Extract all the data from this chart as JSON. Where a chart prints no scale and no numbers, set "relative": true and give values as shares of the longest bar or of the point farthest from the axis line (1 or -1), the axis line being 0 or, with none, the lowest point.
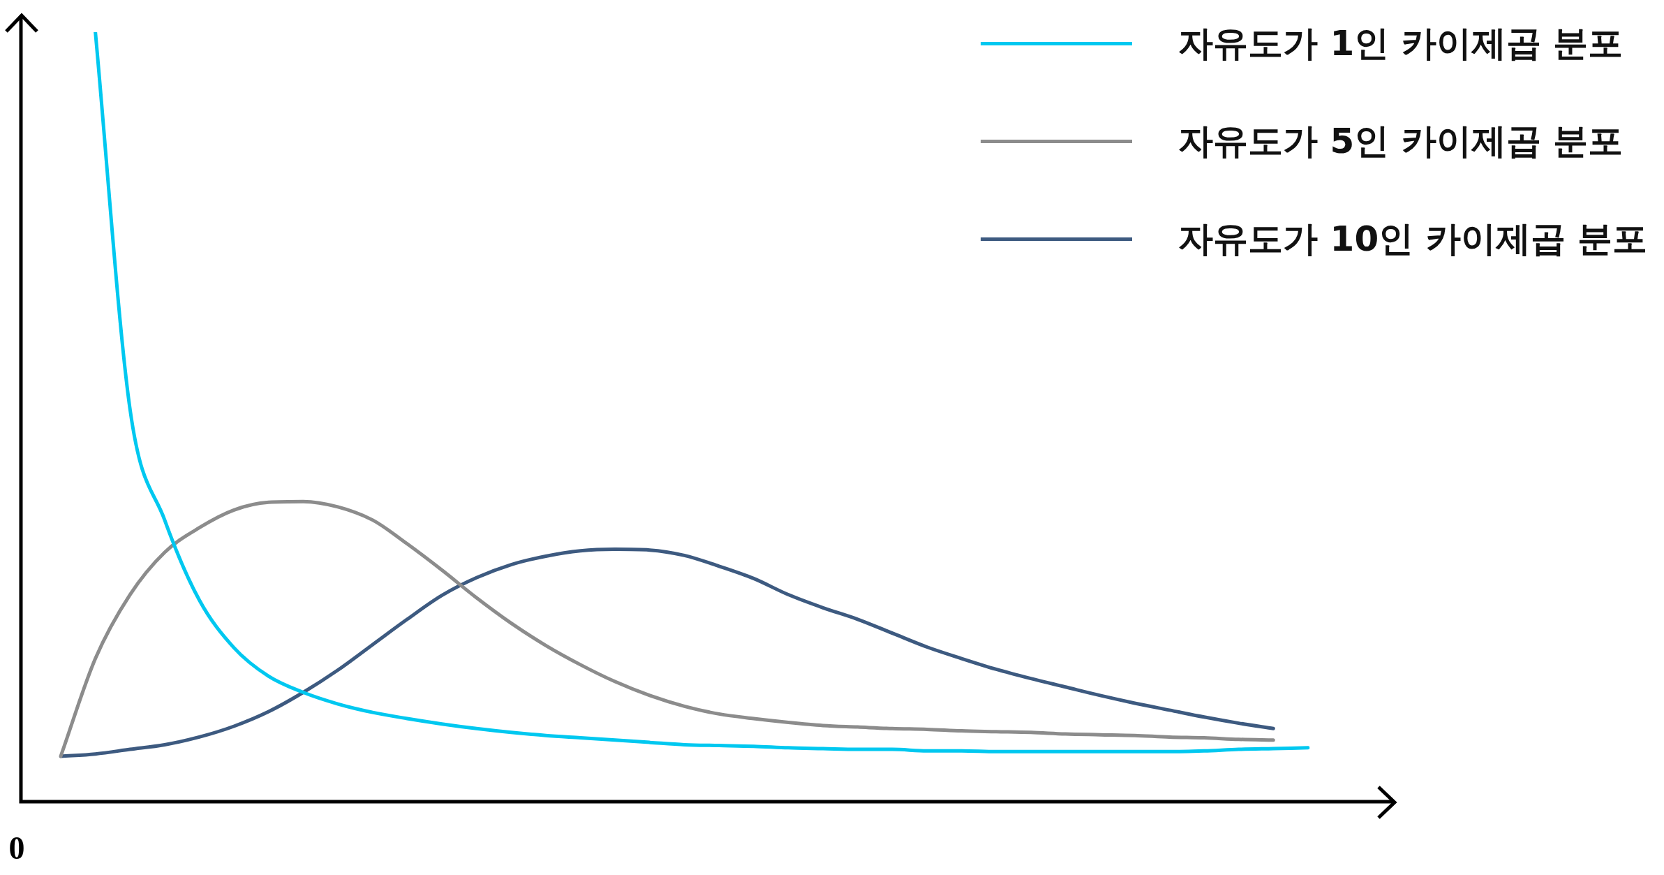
{
  "chart_data": {
    "type": "line",
    "relative": true,
    "legend": "top right",
    "marker": "none",
    "line_style": "solid",
    "categories": [
      null,
      null,
      null,
      null,
      null,
      null,
      null,
      null,
      null,
      null,
      null,
      null,
      null,
      null,
      null,
      null,
      null,
      null,
      null,
      null,
      null,
      null,
      null,
      null,
      null,
      null,
      null,
      null,
      null,
      null,
      null,
      null,
      null,
      null,
      null,
      null,
      null
    ],
    "series": [
      {
        "name": "자유도가 1인 카이제곱 분포",
        "color": "#00c8f0",
        "values": [
          null,
          1.0,
          0.51,
          0.366,
          0.262,
          0.2,
          0.163,
          0.142,
          0.127,
          0.116,
          0.108,
          0.101,
          0.095,
          0.09,
          0.086,
          0.083,
          0.08,
          0.077,
          0.074,
          0.073,
          0.072,
          0.07,
          0.069,
          0.068,
          0.068,
          0.066,
          0.066,
          0.065,
          0.065,
          0.065,
          0.065,
          0.065,
          0.065,
          0.066,
          0.068,
          0.069,
          0.07
        ]
      },
      {
        "name": "자유도가 5인 카이제곱 분포",
        "color": "#8c8c8c",
        "values": [
          0.059,
          0.186,
          0.269,
          0.324,
          0.356,
          0.379,
          0.389,
          0.39,
          0.383,
          0.366,
          0.335,
          0.301,
          0.265,
          0.232,
          0.203,
          0.178,
          0.156,
          0.138,
          0.124,
          0.114,
          0.108,
          0.103,
          0.099,
          0.097,
          0.095,
          0.094,
          0.092,
          0.091,
          0.09,
          0.088,
          0.087,
          0.086,
          0.084,
          0.083,
          0.081,
          0.08,
          null
        ]
      },
      {
        "name": "자유도가 10인 카이제곱 분포",
        "color": "#3d5a80",
        "values": [
          0.059,
          0.062,
          0.068,
          0.074,
          0.084,
          0.098,
          0.117,
          0.142,
          0.171,
          0.204,
          0.237,
          0.268,
          0.291,
          0.308,
          0.319,
          0.326,
          0.328,
          0.327,
          0.32,
          0.306,
          0.29,
          0.269,
          0.252,
          0.237,
          0.219,
          0.201,
          0.186,
          0.172,
          0.16,
          0.149,
          0.138,
          0.128,
          0.119,
          0.11,
          0.102,
          0.095,
          null
        ]
      }
    ],
    "annotations": [
      "0"
    ]
  }
}
